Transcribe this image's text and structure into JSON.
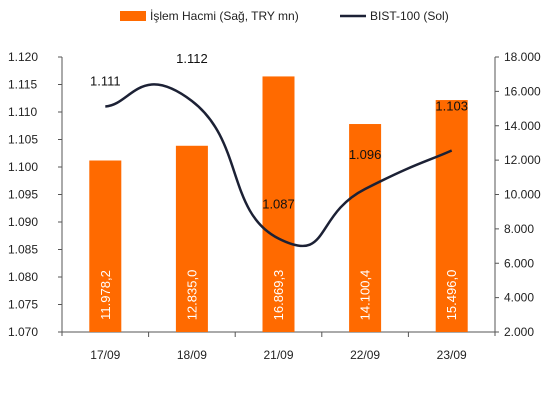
{
  "chart_data": {
    "type": "bar",
    "categories": [
      "17/09",
      "18/09",
      "21/09",
      "22/09",
      "23/09"
    ],
    "series": [
      {
        "name": "İşlem Hacmi (Sağ, TRY mn)",
        "type": "bar",
        "axis": "right",
        "values": [
          11978.2,
          12835.0,
          16869.3,
          14100.4,
          15496.0
        ],
        "labels": [
          "11.978,2",
          "12.835,0",
          "16.869,3",
          "14.100,4",
          "15.496,0"
        ]
      },
      {
        "name": "BIST-100 (Sol)",
        "type": "line",
        "axis": "left",
        "values": [
          1.111,
          1.112,
          1.087,
          1.096,
          1.103
        ],
        "labels": [
          "1.111",
          "1.112",
          "1.087",
          "1.096",
          "1.103"
        ]
      }
    ],
    "y_left": {
      "range": [
        1.07,
        1.12
      ],
      "ticks": [
        1.07,
        1.075,
        1.08,
        1.085,
        1.09,
        1.095,
        1.1,
        1.105,
        1.11,
        1.115,
        1.12
      ],
      "tick_labels": [
        "1.070",
        "1.075",
        "1.080",
        "1.085",
        "1.090",
        "1.095",
        "1.100",
        "1.105",
        "1.110",
        "1.115",
        "1.120"
      ]
    },
    "y_right": {
      "range": [
        2000,
        18000
      ],
      "ticks": [
        2000,
        4000,
        6000,
        8000,
        10000,
        12000,
        14000,
        16000,
        18000
      ],
      "tick_labels": [
        "2.000",
        "4.000",
        "6.000",
        "8.000",
        "10.000",
        "12.000",
        "14.000",
        "16.000",
        "18.000"
      ]
    },
    "legend_position": "top",
    "grid": false,
    "colors": {
      "bar": "#ff6a00",
      "line": "#1c2135"
    }
  }
}
